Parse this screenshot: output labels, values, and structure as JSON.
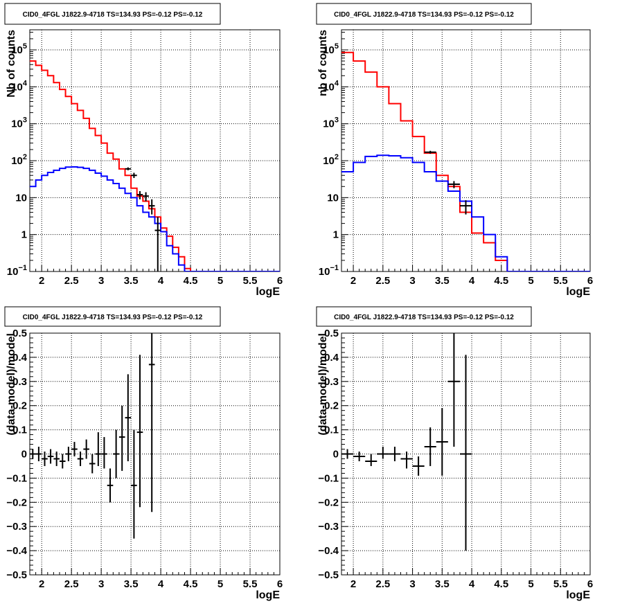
{
  "chart_data": [
    {
      "id": "top-left",
      "type": "line",
      "title": "CID0_4FGL J1822.9-4718 TS=134.93 PS=-0.12 PS=-0.12",
      "xlabel": "logE",
      "ylabel": "Nb of counts",
      "xlim": [
        1.8,
        6.0
      ],
      "ylim": [
        0.1,
        350000
      ],
      "yscale": "log",
      "grid": true,
      "xticks": [
        "2",
        "2.5",
        "3",
        "3.5",
        "4",
        "4.5",
        "5",
        "5.5",
        "6"
      ],
      "yticks": [
        {
          "v": 0.1,
          "base": "10",
          "exp": "−1"
        },
        {
          "v": 1,
          "label": "1"
        },
        {
          "v": 10,
          "label": "10"
        },
        {
          "v": 100,
          "base": "10",
          "exp": "2"
        },
        {
          "v": 1000,
          "base": "10",
          "exp": "3"
        },
        {
          "v": 10000,
          "base": "10",
          "exp": "4"
        },
        {
          "v": 100000,
          "base": "10",
          "exp": "5"
        }
      ],
      "bin_edges": [
        1.8,
        1.9,
        2.0,
        2.1,
        2.2,
        2.3,
        2.4,
        2.5,
        2.6,
        2.7,
        2.8,
        2.9,
        3.0,
        3.1,
        3.2,
        3.3,
        3.4,
        3.5,
        3.6,
        3.7,
        3.8,
        3.9,
        4.0,
        4.1,
        4.2,
        4.3,
        4.4,
        4.5,
        4.6,
        4.7,
        4.8,
        4.9,
        5.0,
        5.1,
        5.2,
        5.3,
        5.4,
        5.5,
        5.6,
        5.7,
        5.8,
        5.9,
        6.0
      ],
      "series": [
        {
          "color": "#ff0000",
          "values": [
            50000,
            38000,
            28000,
            20000,
            13000,
            8500,
            5500,
            3500,
            2300,
            1400,
            750,
            480,
            300,
            160,
            110,
            60,
            40,
            18,
            11,
            8.0,
            5.0,
            3.0,
            1.5,
            0.9,
            0.45,
            0.25,
            0.12,
            0.06,
            0,
            0,
            0,
            0,
            0,
            0,
            0,
            0,
            0,
            0,
            0,
            0,
            0,
            0
          ]
        },
        {
          "color": "#0000ff",
          "values": [
            20,
            30,
            40,
            48,
            55,
            62,
            67,
            68,
            66,
            62,
            55,
            46,
            38,
            30,
            24,
            18,
            13,
            10,
            6,
            4,
            3,
            2,
            1.2,
            0.5,
            0.3,
            0.15,
            0.1,
            0.1,
            0.1,
            0.1,
            0.1,
            0.1,
            0.1,
            0.1,
            0.1,
            0.1,
            0.1,
            0.1,
            0.1,
            0.1,
            0.1,
            0.1
          ]
        }
      ],
      "points": [
        {
          "x": 3.45,
          "y": 60,
          "xerr": 0.05,
          "ylo": 55,
          "yhi": 66
        },
        {
          "x": 3.55,
          "y": 40,
          "xerr": 0.05,
          "ylo": 34,
          "yhi": 47
        },
        {
          "x": 3.65,
          "y": 12,
          "xerr": 0.05,
          "ylo": 9,
          "yhi": 15
        },
        {
          "x": 3.75,
          "y": 11,
          "xerr": 0.05,
          "ylo": 8,
          "yhi": 14
        },
        {
          "x": 3.85,
          "y": 6,
          "xerr": 0.05,
          "ylo": 3.5,
          "yhi": 9
        },
        {
          "x": 3.95,
          "y": 1.3,
          "xerr": 0.05,
          "ylo": 0.1,
          "yhi": 3
        }
      ]
    },
    {
      "id": "top-right",
      "type": "line",
      "title": "CID0_4FGL J1822.9-4718 TS=134.93 PS=-0.12 PS=-0.12",
      "xlabel": "logE",
      "ylabel": "nb of counts",
      "xlim": [
        1.8,
        6.0
      ],
      "ylim": [
        0.1,
        350000
      ],
      "yscale": "log",
      "grid": true,
      "xticks": [
        "2",
        "2.5",
        "3",
        "3.5",
        "4",
        "4.5",
        "5",
        "5.5",
        "6"
      ],
      "yticks": [
        {
          "v": 0.1,
          "base": "10",
          "exp": "−1"
        },
        {
          "v": 1,
          "label": "1"
        },
        {
          "v": 10,
          "label": "10"
        },
        {
          "v": 100,
          "base": "10",
          "exp": "2"
        },
        {
          "v": 1000,
          "base": "10",
          "exp": "3"
        },
        {
          "v": 10000,
          "base": "10",
          "exp": "4"
        },
        {
          "v": 100000,
          "base": "10",
          "exp": "5"
        }
      ],
      "bin_edges": [
        1.8,
        2.0,
        2.2,
        2.4,
        2.6,
        2.8,
        3.0,
        3.2,
        3.4,
        3.6,
        3.8,
        4.0,
        4.2,
        4.4,
        4.6,
        4.8,
        5.0,
        5.2,
        5.4,
        5.6,
        5.8,
        6.0
      ],
      "series": [
        {
          "color": "#ff0000",
          "values": [
            85000,
            50000,
            25000,
            10000,
            3500,
            1200,
            450,
            160,
            40,
            20,
            4,
            1.1,
            0.6,
            0.2,
            0,
            0,
            0,
            0,
            0,
            0,
            0
          ]
        },
        {
          "color": "#0000ff",
          "values": [
            50,
            90,
            130,
            140,
            135,
            120,
            90,
            50,
            28,
            15,
            8,
            3,
            1.0,
            0.25,
            0.1,
            0.1,
            0.1,
            0.1,
            0.1,
            0.1,
            0.1
          ]
        }
      ],
      "points": [
        {
          "x": 3.3,
          "y": 170,
          "xerr": 0.1,
          "ylo": 155,
          "yhi": 185
        },
        {
          "x": 3.7,
          "y": 23,
          "xerr": 0.1,
          "ylo": 18,
          "yhi": 28
        },
        {
          "x": 3.9,
          "y": 6,
          "xerr": 0.1,
          "ylo": 3.5,
          "yhi": 8.5
        }
      ]
    },
    {
      "id": "bottom-left",
      "type": "scatter",
      "title": "CID0_4FGL J1822.9-4718 TS=134.93 PS=-0.12 PS=-0.12",
      "xlabel": "logE",
      "ylabel": "(data-model)/model",
      "xlim": [
        1.8,
        6.0
      ],
      "ylim": [
        -0.5,
        0.5
      ],
      "yscale": "linear",
      "grid": true,
      "xticks": [
        "2",
        "2.5",
        "3",
        "3.5",
        "4",
        "4.5",
        "5",
        "5.5",
        "6"
      ],
      "yticks": [
        {
          "v": -0.5,
          "label": "−0.5"
        },
        {
          "v": -0.4,
          "label": "−0.4"
        },
        {
          "v": -0.3,
          "label": "−0.3"
        },
        {
          "v": -0.2,
          "label": "−0.2"
        },
        {
          "v": -0.1,
          "label": "−0.1"
        },
        {
          "v": 0,
          "label": "0"
        },
        {
          "v": 0.1,
          "label": "0.1"
        },
        {
          "v": 0.2,
          "label": "0.2"
        },
        {
          "v": 0.3,
          "label": "0.3"
        },
        {
          "v": 0.4,
          "label": "0.4"
        },
        {
          "v": 0.5,
          "label": "0.5"
        }
      ],
      "points": [
        {
          "x": 1.85,
          "y": 0.0,
          "xerr": 0.05,
          "ylo": -0.02,
          "yhi": 0.02
        },
        {
          "x": 1.95,
          "y": 0.0,
          "xerr": 0.05,
          "ylo": -0.03,
          "yhi": 0.03
        },
        {
          "x": 2.05,
          "y": -0.02,
          "xerr": 0.05,
          "ylo": -0.05,
          "yhi": 0.01
        },
        {
          "x": 2.15,
          "y": -0.01,
          "xerr": 0.05,
          "ylo": -0.04,
          "yhi": 0.02
        },
        {
          "x": 2.25,
          "y": -0.02,
          "xerr": 0.05,
          "ylo": -0.05,
          "yhi": 0.01
        },
        {
          "x": 2.35,
          "y": -0.03,
          "xerr": 0.05,
          "ylo": -0.06,
          "yhi": 0.0
        },
        {
          "x": 2.45,
          "y": 0.0,
          "xerr": 0.05,
          "ylo": -0.03,
          "yhi": 0.03
        },
        {
          "x": 2.55,
          "y": 0.02,
          "xerr": 0.05,
          "ylo": -0.01,
          "yhi": 0.05
        },
        {
          "x": 2.65,
          "y": -0.02,
          "xerr": 0.05,
          "ylo": -0.05,
          "yhi": 0.01
        },
        {
          "x": 2.75,
          "y": 0.02,
          "xerr": 0.05,
          "ylo": -0.02,
          "yhi": 0.06
        },
        {
          "x": 2.85,
          "y": -0.04,
          "xerr": 0.05,
          "ylo": -0.08,
          "yhi": 0.0
        },
        {
          "x": 2.95,
          "y": 0.0,
          "xerr": 0.05,
          "ylo": -0.05,
          "yhi": 0.09
        },
        {
          "x": 3.05,
          "y": 0.0,
          "xerr": 0.05,
          "ylo": -0.06,
          "yhi": 0.07
        },
        {
          "x": 3.15,
          "y": -0.13,
          "xerr": 0.05,
          "ylo": -0.2,
          "yhi": -0.06
        },
        {
          "x": 3.25,
          "y": 0.0,
          "xerr": 0.05,
          "ylo": -0.1,
          "yhi": 0.1
        },
        {
          "x": 3.35,
          "y": 0.07,
          "xerr": 0.05,
          "ylo": -0.07,
          "yhi": 0.2
        },
        {
          "x": 3.45,
          "y": 0.15,
          "xerr": 0.05,
          "ylo": -0.03,
          "yhi": 0.33
        },
        {
          "x": 3.55,
          "y": -0.13,
          "xerr": 0.05,
          "ylo": -0.35,
          "yhi": 0.1
        },
        {
          "x": 3.65,
          "y": 0.09,
          "xerr": 0.05,
          "ylo": -0.22,
          "yhi": 0.41
        },
        {
          "x": 3.85,
          "y": 0.37,
          "xerr": 0.05,
          "ylo": -0.24,
          "yhi": 0.5
        }
      ]
    },
    {
      "id": "bottom-right",
      "type": "scatter",
      "title": "CID0_4FGL J1822.9-4718 TS=134.93 PS=-0.12 PS=-0.12",
      "xlabel": "logE",
      "ylabel": "(data-model)/model",
      "xlim": [
        1.8,
        6.0
      ],
      "ylim": [
        -0.5,
        0.5
      ],
      "yscale": "linear",
      "grid": true,
      "xticks": [
        "2",
        "2.5",
        "3",
        "3.5",
        "4",
        "4.5",
        "5",
        "5.5",
        "6"
      ],
      "yticks": [
        {
          "v": -0.5,
          "label": "−0.5"
        },
        {
          "v": -0.4,
          "label": "−0.4"
        },
        {
          "v": -0.3,
          "label": "−0.3"
        },
        {
          "v": -0.2,
          "label": "−0.2"
        },
        {
          "v": -0.1,
          "label": "−0.1"
        },
        {
          "v": 0,
          "label": "0"
        },
        {
          "v": 0.1,
          "label": "0.1"
        },
        {
          "v": 0.2,
          "label": "0.2"
        },
        {
          "v": 0.3,
          "label": "0.3"
        },
        {
          "v": 0.4,
          "label": "0.4"
        },
        {
          "v": 0.5,
          "label": "0.5"
        }
      ],
      "points": [
        {
          "x": 1.9,
          "y": 0.0,
          "xerr": 0.1,
          "ylo": -0.02,
          "yhi": 0.02
        },
        {
          "x": 2.1,
          "y": -0.01,
          "xerr": 0.1,
          "ylo": -0.03,
          "yhi": 0.01
        },
        {
          "x": 2.3,
          "y": -0.03,
          "xerr": 0.1,
          "ylo": -0.05,
          "yhi": 0.0
        },
        {
          "x": 2.5,
          "y": 0.0,
          "xerr": 0.1,
          "ylo": -0.02,
          "yhi": 0.03
        },
        {
          "x": 2.7,
          "y": 0.0,
          "xerr": 0.1,
          "ylo": -0.03,
          "yhi": 0.03
        },
        {
          "x": 2.9,
          "y": -0.02,
          "xerr": 0.1,
          "ylo": -0.06,
          "yhi": 0.01
        },
        {
          "x": 3.1,
          "y": -0.05,
          "xerr": 0.1,
          "ylo": -0.09,
          "yhi": -0.01
        },
        {
          "x": 3.3,
          "y": 0.03,
          "xerr": 0.1,
          "ylo": -0.05,
          "yhi": 0.11
        },
        {
          "x": 3.5,
          "y": 0.05,
          "xerr": 0.1,
          "ylo": -0.09,
          "yhi": 0.19
        },
        {
          "x": 3.7,
          "y": 0.3,
          "xerr": 0.1,
          "ylo": 0.03,
          "yhi": 0.5
        },
        {
          "x": 3.9,
          "y": 0.0,
          "xerr": 0.1,
          "ylo": -0.4,
          "yhi": 0.41
        }
      ]
    }
  ]
}
